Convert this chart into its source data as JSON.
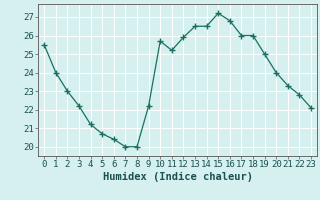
{
  "x": [
    0,
    1,
    2,
    3,
    4,
    5,
    6,
    7,
    8,
    9,
    10,
    11,
    12,
    13,
    14,
    15,
    16,
    17,
    18,
    19,
    20,
    21,
    22,
    23
  ],
  "y": [
    25.5,
    24.0,
    23.0,
    22.2,
    21.2,
    20.7,
    20.4,
    20.0,
    20.0,
    22.2,
    25.7,
    25.2,
    25.9,
    26.5,
    26.5,
    27.2,
    26.8,
    26.0,
    26.0,
    25.0,
    24.0,
    23.3,
    22.8,
    22.1
  ],
  "line_color": "#1a7060",
  "marker": "+",
  "marker_size": 4,
  "marker_lw": 1.0,
  "bg_color": "#d6f0f0",
  "grid_color": "#ffffff",
  "xlabel": "Humidex (Indice chaleur)",
  "xlabel_fontsize": 7.5,
  "tick_fontsize": 6.5,
  "ylim": [
    19.5,
    27.7
  ],
  "xlim": [
    -0.5,
    23.5
  ],
  "yticks": [
    20,
    21,
    22,
    23,
    24,
    25,
    26,
    27
  ],
  "xticks": [
    0,
    1,
    2,
    3,
    4,
    5,
    6,
    7,
    8,
    9,
    10,
    11,
    12,
    13,
    14,
    15,
    16,
    17,
    18,
    19,
    20,
    21,
    22,
    23
  ],
  "linewidth": 0.9,
  "spine_color": "#555555"
}
